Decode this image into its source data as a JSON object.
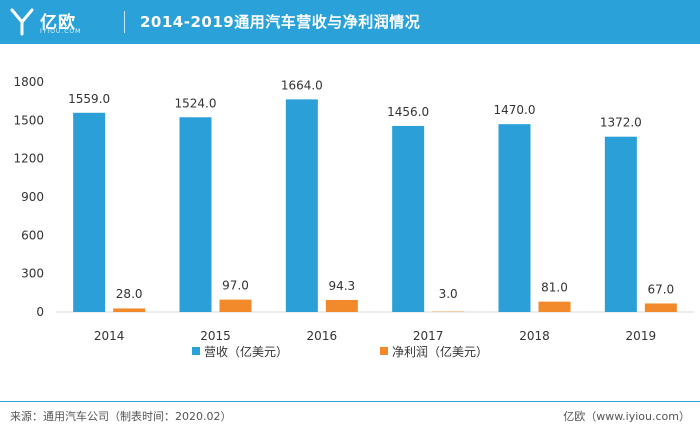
{
  "header": {
    "brand_name": "亿欧",
    "brand_sub": "IYIOU.COM",
    "title": "2014-2019通用汽车营收与净利润情况"
  },
  "footer": {
    "source": "来源：通用汽车公司（制表时间：2020.02）",
    "site": "亿欧（www.iyiou.com）"
  },
  "colors": {
    "header_bg": "#2aa2d9",
    "revenue": "#2b9fd8",
    "profit": "#f28a2b"
  },
  "chart_data": {
    "type": "bar",
    "categories": [
      "2014",
      "2015",
      "2016",
      "2017",
      "2018",
      "2019"
    ],
    "series": [
      {
        "name": "营收（亿美元）",
        "values": [
          1559.0,
          1524.0,
          1664.0,
          1456.0,
          1470.0,
          1372.0
        ],
        "labels": [
          "1559.0",
          "1524.0",
          "1664.0",
          "1456.0",
          "1470.0",
          "1372.0"
        ]
      },
      {
        "name": "净利润（亿美元）",
        "values": [
          28.0,
          97.0,
          94.3,
          3.0,
          81.0,
          67.0
        ],
        "labels": [
          "28.0",
          "97.0",
          "94.3",
          "3.0",
          "81.0",
          "67.0"
        ]
      }
    ],
    "yticks": [
      "0",
      "300",
      "600",
      "900",
      "1200",
      "1500",
      "1800"
    ],
    "ylim": [
      0,
      1800
    ],
    "grid": false,
    "legend_position": "bottom"
  }
}
